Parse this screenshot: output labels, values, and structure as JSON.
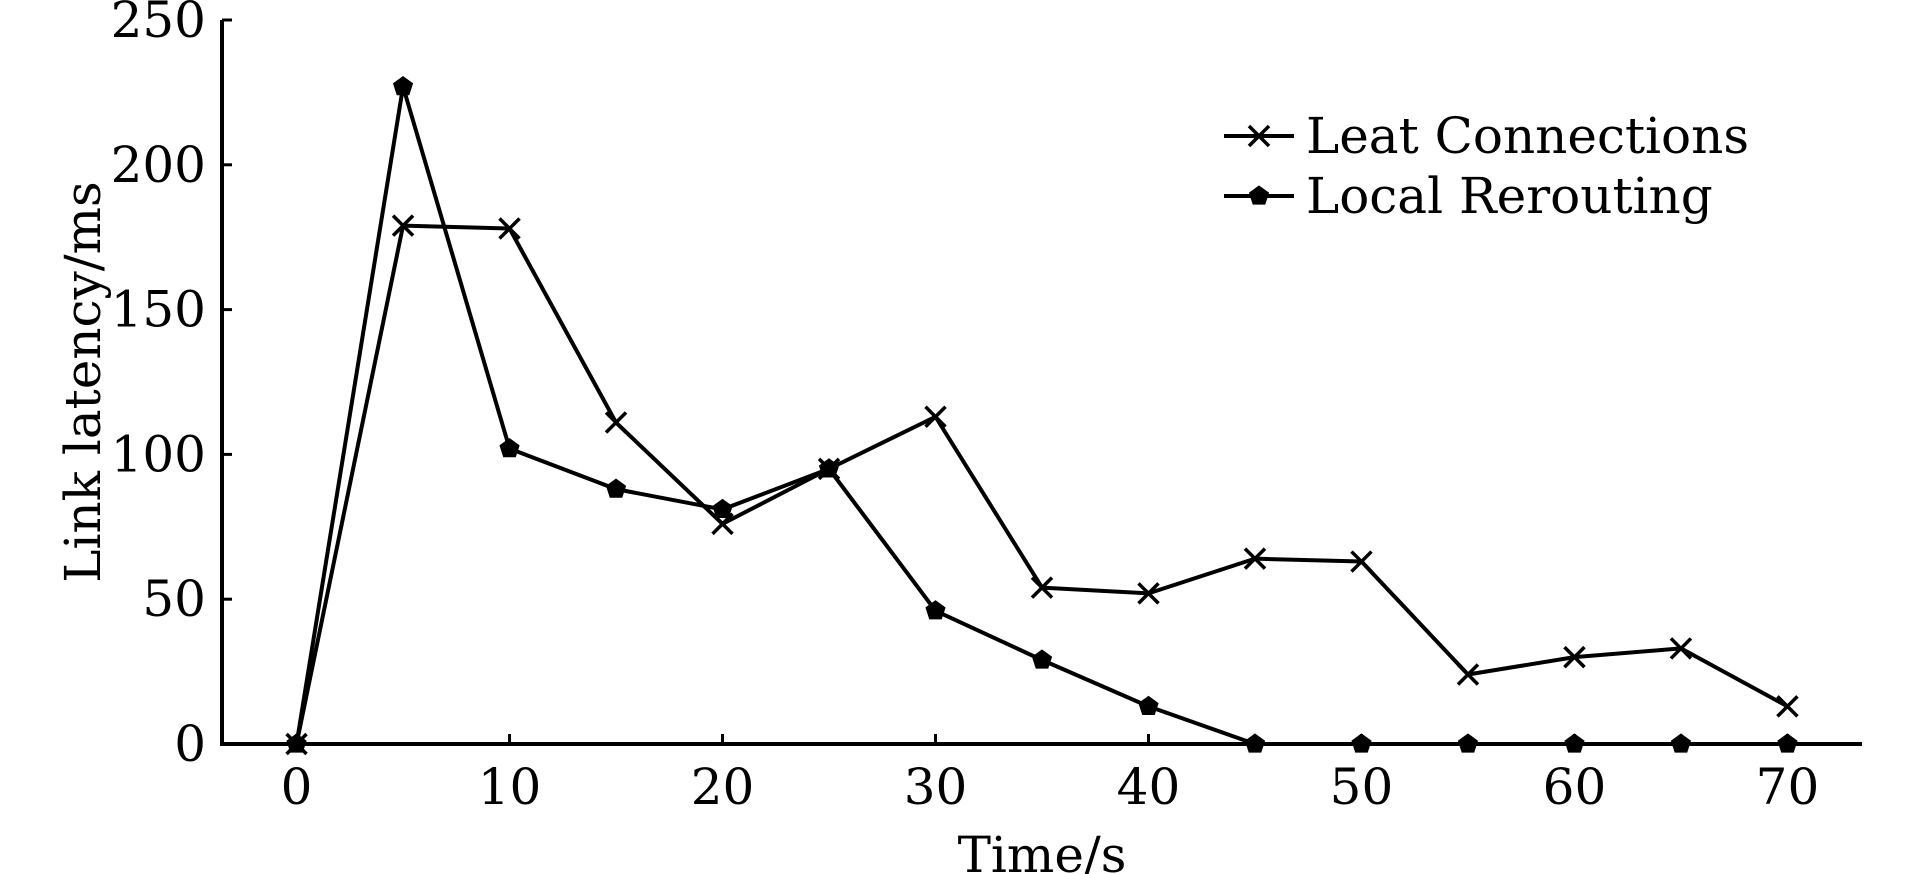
{
  "chart_data": {
    "type": "line",
    "xlabel": "Time/s",
    "ylabel": "Link latency/ms",
    "xlim": [
      -3.5,
      73.5
    ],
    "ylim": [
      0,
      250
    ],
    "x_ticks": [
      0,
      10,
      20,
      30,
      40,
      50,
      60,
      70
    ],
    "y_ticks": [
      0,
      50,
      100,
      150,
      200,
      250
    ],
    "x_tick_labels": [
      "0",
      "10",
      "20",
      "30",
      "40",
      "50",
      "60",
      "70"
    ],
    "y_tick_labels": [
      "0",
      "50",
      "100",
      "150",
      "200",
      "250"
    ],
    "grid": false,
    "legend_position": "top-right",
    "series": [
      {
        "name": "Leat Connections",
        "marker": "x",
        "x": [
          0,
          5,
          10,
          15,
          20,
          25,
          30,
          35,
          40,
          45,
          50,
          55,
          60,
          65,
          70
        ],
        "values": [
          0,
          179,
          178,
          111,
          76,
          95,
          113,
          54,
          52,
          64,
          63,
          24,
          30,
          33,
          13
        ]
      },
      {
        "name": "Local Rerouting",
        "marker": "pentagon",
        "x": [
          0,
          5,
          10,
          15,
          20,
          25,
          30,
          35,
          40,
          45,
          50,
          55,
          60,
          65,
          70
        ],
        "values": [
          0,
          227,
          102,
          88,
          81,
          95,
          46,
          29,
          13,
          0,
          0,
          0,
          0,
          0,
          0
        ]
      }
    ]
  }
}
